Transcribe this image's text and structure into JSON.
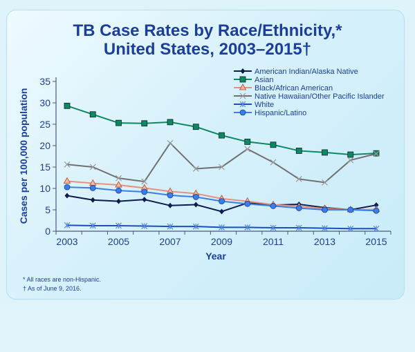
{
  "chart_data": {
    "type": "line",
    "title_line1": "TB Case Rates by Race/Ethnicity,*",
    "title_line2": "United States, 2003–2015†",
    "xlabel": "Year",
    "ylabel": "Cases per 100,000 population",
    "ylim": [
      0,
      35
    ],
    "yticks": [
      0,
      5,
      10,
      15,
      20,
      25,
      30,
      35
    ],
    "xticks": [
      2003,
      2005,
      2007,
      2009,
      2011,
      2013,
      2015
    ],
    "x": [
      2003,
      2004,
      2005,
      2006,
      2007,
      2008,
      2009,
      2010,
      2011,
      2012,
      2013,
      2014,
      2015
    ],
    "legend_position": "top-right",
    "grid": false,
    "series": [
      {
        "name": "American Indian/Alaska Native",
        "color": "#0d1b4d",
        "marker": "diamond",
        "values": [
          8.3,
          7.3,
          7.0,
          7.4,
          6.0,
          6.2,
          4.6,
          6.6,
          6.1,
          6.3,
          5.5,
          5.0,
          6.1
        ]
      },
      {
        "name": "Asian",
        "color": "#0a8a5e",
        "marker": "square",
        "values": [
          29.3,
          27.3,
          25.3,
          25.2,
          25.5,
          24.4,
          22.4,
          20.9,
          20.2,
          18.8,
          18.4,
          17.9,
          18.2
        ]
      },
      {
        "name": "Black/African American",
        "color": "#e8907a",
        "marker": "triangle",
        "values": [
          11.7,
          11.2,
          10.8,
          10.1,
          9.3,
          8.8,
          7.6,
          7.0,
          6.2,
          5.8,
          5.3,
          5.0,
          5.1
        ]
      },
      {
        "name": "Native Hawaiian/Other Pacific Islander",
        "color": "#707070",
        "marker": "x",
        "values": [
          15.6,
          15.0,
          12.4,
          11.6,
          20.6,
          14.6,
          15.0,
          19.2,
          16.1,
          12.2,
          11.4,
          16.6,
          18.1
        ]
      },
      {
        "name": "White",
        "color": "#1a4fc0",
        "marker": "star",
        "values": [
          1.4,
          1.3,
          1.3,
          1.2,
          1.1,
          1.1,
          0.9,
          0.9,
          0.8,
          0.8,
          0.7,
          0.6,
          0.6
        ]
      },
      {
        "name": "Hispanic/Latino",
        "color": "#3a7ee8",
        "marker": "circle",
        "values": [
          10.3,
          10.1,
          9.5,
          9.2,
          8.4,
          8.0,
          7.0,
          6.4,
          5.9,
          5.4,
          5.0,
          5.0,
          4.8
        ]
      }
    ]
  },
  "footnotes": [
    "* All races are non-Hispanic.",
    "† As of June 9, 2016."
  ]
}
